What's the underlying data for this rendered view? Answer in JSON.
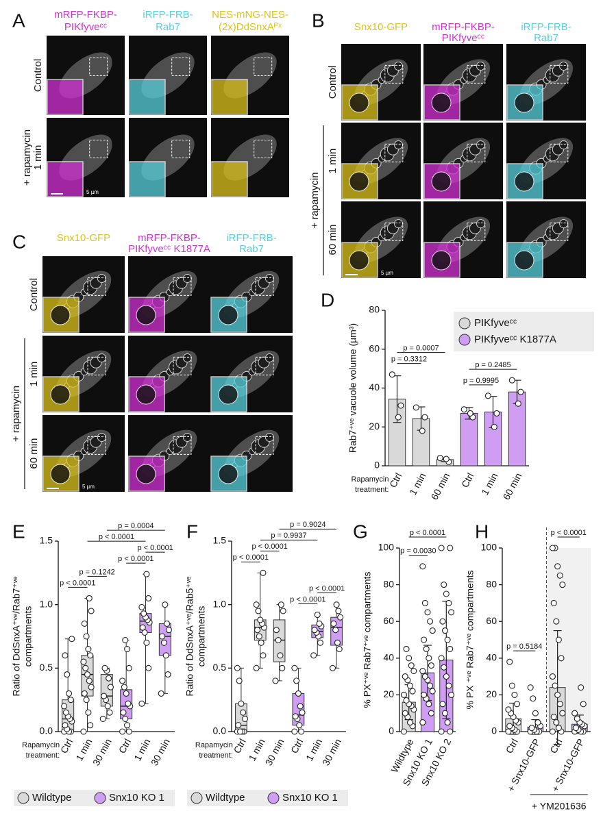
{
  "figure": {
    "A": {
      "label": "A",
      "headers": [
        {
          "lines": [
            "mRFP-FKBP-",
            "PIKfyveᶜᶜ"
          ],
          "color": "#d22fd2"
        },
        {
          "lines": [
            "iRFP-FRB-",
            "Rab7"
          ],
          "color": "#56d0dc"
        },
        {
          "lines": [
            "NES-mNG-NES-",
            "(2x)DdSnxAᴾˣ"
          ],
          "color": "#dcc21c"
        }
      ],
      "rows": [
        [
          "Control"
        ],
        [
          "+ rapamycin",
          "1 min"
        ]
      ],
      "scale_bar": "5 µm"
    },
    "B": {
      "label": "B",
      "headers": [
        {
          "lines": [
            "Snx10-GFP"
          ],
          "color": "#dcc21c"
        },
        {
          "lines": [
            "mRFP-FKBP-",
            "PIKfyveᶜᶜ"
          ],
          "color": "#d22fd2"
        },
        {
          "lines": [
            "iRFP-FRB-",
            "Rab7"
          ],
          "color": "#56d0dc"
        }
      ],
      "rows": [
        [
          "Control"
        ],
        [
          "1 min"
        ],
        [
          "60 min"
        ]
      ],
      "group": "+ rapamycin",
      "scale_bar": "5 µm"
    },
    "C": {
      "label": "C",
      "headers": [
        {
          "lines": [
            "Snx10-GFP"
          ],
          "color": "#dcc21c"
        },
        {
          "lines": [
            "mRFP-FKBP-",
            "PIKfyveᶜᶜ K1877A"
          ],
          "color": "#d22fd2"
        },
        {
          "lines": [
            "iRFP-FRB-",
            "Rab7"
          ],
          "color": "#56d0dc"
        }
      ],
      "rows": [
        [
          "Control"
        ],
        [
          "1 min"
        ],
        [
          "60 min"
        ]
      ],
      "group": "+ rapamycin",
      "scale_bar": "5 µm"
    }
  },
  "chart_data": [
    {
      "label": "D",
      "type": "bar",
      "categories": [
        "Ctrl",
        "1 min",
        "60 min",
        "Ctrl",
        "1 min",
        "60 min"
      ],
      "ylabel": "Rab7⁺ᵛᵉ vacuole volume (µm³)",
      "xlabel_lines": [
        "Rapamycin",
        "treatment:"
      ],
      "ylim": [
        0,
        80
      ],
      "yticks": [
        0,
        20,
        40,
        60,
        80
      ],
      "legend": "top-right",
      "series": [
        {
          "name": "PIKfyveᶜᶜ",
          "color": "#d9d9d9",
          "values": [
            34.3,
            24.3,
            3.2,
            null,
            null,
            null
          ],
          "errors": [
            12,
            6,
            1,
            null,
            null,
            null
          ],
          "points": [
            [
              47,
              31,
              25
            ],
            [
              30,
              25,
              18
            ],
            [
              4,
              2,
              3.5
            ],
            null,
            null,
            null
          ]
        },
        {
          "name": "PIKfyveᶜᶜ K1877A",
          "color": "#cf9ef2",
          "values": [
            null,
            null,
            null,
            27,
            27.7,
            38
          ],
          "errors": [
            null,
            null,
            null,
            3,
            8,
            6
          ],
          "points": [
            null,
            null,
            null,
            [
              29,
              25,
              27
            ],
            [
              36,
              27,
              20
            ],
            [
              44,
              38,
              32
            ]
          ]
        }
      ],
      "comparisons": [
        {
          "label": "p = 0.3312",
          "from": 0,
          "to": 1
        },
        {
          "label": "p = 0.0007",
          "from": 0,
          "to": 2
        },
        {
          "label": "p = 0.9995",
          "from": 3,
          "to": 4
        },
        {
          "label": "p = 0.2485",
          "from": 3,
          "to": 5
        }
      ]
    },
    {
      "label": "E",
      "type": "box",
      "categories": [
        "Ctrl",
        "1 min",
        "30 min",
        "Ctrl",
        "1 min",
        "30 min"
      ],
      "ylabel_lines": [
        "Ratio of DdSnxA⁺ᵛᵉ/Rab7⁺ᵛᵉ",
        "compartments"
      ],
      "xlabel_lines": [
        "Rapamycin",
        "treatment:"
      ],
      "ylim": [
        0,
        1.5
      ],
      "yticks": [
        {
          "value": 0,
          "label": "0.0"
        },
        0.5,
        {
          "value": 1,
          "label": "1.0"
        },
        1.5
      ],
      "legend": "bottom",
      "series": [
        {
          "name": "Wildtype",
          "color": "#d9d9d9",
          "boxes": [
            [
              0,
              0,
              0.1,
              0.25,
              0.73
            ],
            [
              0,
              0.28,
              0.45,
              0.6,
              1.05
            ],
            [
              0.1,
              0.2,
              0.28,
              0.45,
              0.5
            ],
            null,
            null,
            null
          ],
          "points": [
            [
              0,
              0,
              0,
              0.02,
              0.05,
              0.08,
              0.1,
              0.12,
              0.15,
              0.2,
              0.25,
              0.3,
              0.45,
              0.6,
              0.73
            ],
            [
              0,
              0.05,
              0.15,
              0.25,
              0.3,
              0.35,
              0.4,
              0.45,
              0.5,
              0.55,
              0.6,
              0.65,
              0.75,
              0.85,
              0.95,
              1.05
            ],
            [
              0.1,
              0.15,
              0.2,
              0.25,
              0.28,
              0.35,
              0.42,
              0.48,
              0.5
            ],
            null,
            null,
            null
          ]
        },
        {
          "name": "Snx10 KO 1",
          "color": "#cf9ef2",
          "boxes": [
            null,
            null,
            null,
            [
              0,
              0.1,
              0.2,
              0.33,
              0.72
            ],
            [
              0.22,
              0.78,
              0.87,
              0.93,
              1.24
            ],
            [
              0.3,
              0.6,
              0.75,
              0.85,
              1.0
            ]
          ],
          "points": [
            null,
            null,
            null,
            [
              0,
              0,
              0.05,
              0.1,
              0.15,
              0.2,
              0.22,
              0.3,
              0.35,
              0.4,
              0.5,
              0.65,
              0.72
            ],
            [
              0.22,
              0.5,
              0.7,
              0.78,
              0.82,
              0.86,
              0.88,
              0.9,
              0.93,
              0.98,
              1.05,
              1.24
            ],
            [
              0.3,
              0.45,
              0.6,
              0.7,
              0.75,
              0.8,
              0.85,
              1.0
            ]
          ]
        }
      ],
      "comparisons": [
        {
          "label": "p < 0.0001",
          "from": 0,
          "to": 1
        },
        {
          "label": "p = 0.1242",
          "from": 1,
          "to": 2
        },
        {
          "label": "p < 0.0001",
          "from": 3,
          "to": 4
        },
        {
          "label": "p < 0.0001",
          "from": 4,
          "to": 5
        },
        {
          "label": "p < 0.0001",
          "from": 1,
          "to": 4
        },
        {
          "label": "p = 0.0004",
          "from": 2,
          "to": 5
        }
      ]
    },
    {
      "label": "F",
      "type": "box",
      "categories": [
        "Ctrl",
        "1 min",
        "30 min",
        "Ctrl",
        "1 min",
        "30 min"
      ],
      "ylabel_lines": [
        "Ratio of DdSnxA⁺ᵛᵉ/Rab5⁺ᵛᵉ",
        "compartments"
      ],
      "xlabel_lines": [
        "Rapamycin",
        "treatment:"
      ],
      "ylim": [
        0,
        1.5
      ],
      "yticks": [
        {
          "value": 0,
          "label": "0.0"
        },
        0.5,
        {
          "value": 1,
          "label": "1.0"
        },
        1.5
      ],
      "legend": "bottom",
      "series": [
        {
          "name": "Wildtype",
          "color": "#d9d9d9",
          "boxes": [
            [
              0,
              0,
              0.05,
              0.22,
              0.5
            ],
            [
              0.5,
              0.72,
              0.82,
              0.88,
              1.25
            ],
            [
              0.4,
              0.55,
              0.72,
              0.88,
              1.0
            ],
            null,
            null,
            null
          ],
          "points": [
            [
              0,
              0,
              0,
              0,
              0.05,
              0.1,
              0.15,
              0.22,
              0.4,
              0.5
            ],
            [
              0.5,
              0.6,
              0.7,
              0.75,
              0.8,
              0.82,
              0.85,
              0.88,
              0.95,
              1.0,
              1.25
            ],
            [
              0.4,
              0.5,
              0.6,
              0.72,
              0.8,
              0.95,
              1.0
            ],
            null,
            null,
            null
          ]
        },
        {
          "name": "Snx10 KO 1",
          "color": "#cf9ef2",
          "boxes": [
            null,
            null,
            null,
            [
              0,
              0.05,
              0.13,
              0.3,
              0.5
            ],
            [
              0.6,
              0.74,
              0.79,
              0.84,
              0.92
            ],
            [
              0.5,
              0.68,
              0.82,
              0.9,
              1.0
            ]
          ],
          "points": [
            null,
            null,
            null,
            [
              0,
              0,
              0.05,
              0.1,
              0.12,
              0.15,
              0.2,
              0.3,
              0.4,
              0.5
            ],
            [
              0.6,
              0.7,
              0.75,
              0.78,
              0.8,
              0.83,
              0.85,
              0.92
            ],
            [
              0.5,
              0.65,
              0.7,
              0.8,
              0.85,
              0.9,
              0.95,
              1.0
            ]
          ]
        }
      ],
      "comparisons": [
        {
          "label": "p < 0.0001",
          "from": 0,
          "to": 1
        },
        {
          "label": "p < 0.0001",
          "from": 1,
          "to": 2
        },
        {
          "label": "p < 0.0001",
          "from": 3,
          "to": 4
        },
        {
          "label": "p < 0.0001",
          "from": 4,
          "to": 5
        },
        {
          "label": "p = 0.9937",
          "from": 1,
          "to": 4
        },
        {
          "label": "p = 0.9024",
          "from": 2,
          "to": 5
        }
      ]
    },
    {
      "label": "G",
      "type": "bar",
      "categories": [
        "Wildtype",
        "Snx10 KO 1",
        "Snx10 KO 2"
      ],
      "ylabel": "% PX⁺ᵛᵉ Rab7⁺ᵛᵉ compartments",
      "ylim": [
        0,
        100
      ],
      "yticks": [
        0,
        20,
        40,
        60,
        80,
        100
      ],
      "series": [
        {
          "color": "#d9d9d9",
          "values": [
            16,
            null,
            null
          ],
          "errors": [
            9.5,
            null,
            null
          ],
          "points": [
            [
              0,
              3,
              5,
              8,
              10,
              12,
              14,
              15,
              17,
              20,
              22,
              25,
              28,
              30,
              33,
              36,
              40,
              45
            ],
            null,
            null
          ]
        },
        {
          "color": "#cf9ef2",
          "values": [
            null,
            32,
            39
          ],
          "errors": [
            null,
            15,
            32
          ],
          "points": [
            null,
            [
              5,
              10,
              15,
              18,
              20,
              22,
              25,
              28,
              30,
              33,
              36,
              40,
              45,
              50,
              55,
              60,
              65,
              70,
              90
            ],
            [
              0,
              0,
              5,
              10,
              15,
              20,
              25,
              30,
              35,
              40,
              45,
              50,
              55,
              60,
              65,
              70,
              75,
              80,
              100,
              100
            ]
          ]
        }
      ],
      "comparisons": [
        {
          "label": "p = 0.0030",
          "from": 0,
          "to": 1
        },
        {
          "label": "p < 0.0001",
          "from": 0,
          "to": 2
        }
      ]
    },
    {
      "label": "H",
      "type": "bar",
      "categories": [
        "Ctrl",
        "+ Snx10-GFP",
        "Ctrl",
        "+ Snx10-GFP"
      ],
      "ylabel": "% PX ⁺ᵛᵉ Rab7⁺ᵛᵉ compartments",
      "ylim": [
        0,
        100
      ],
      "yticks": [
        0,
        20,
        40,
        60,
        80,
        100
      ],
      "shade_from": 2,
      "group_label": {
        "text": "+ YM201636",
        "from": 2,
        "to": 3
      },
      "series": [
        {
          "color": "#d9d9d9",
          "values": [
            7,
            null,
            24,
            null
          ],
          "errors": [
            8.5,
            null,
            31,
            null
          ],
          "points": [
            [
              0,
              0,
              1,
              2,
              3,
              5,
              6,
              8,
              10,
              12,
              15,
              20,
              25,
              38
            ],
            null,
            [
              0,
              0,
              2,
              5,
              8,
              10,
              15,
              20,
              25,
              30,
              40,
              50,
              60,
              70,
              80,
              85,
              90,
              100,
              100
            ],
            null
          ]
        },
        {
          "color": "#cf9ef2",
          "values": [
            null,
            2.5,
            null,
            4
          ],
          "errors": [
            null,
            4,
            null,
            5
          ],
          "points": [
            null,
            [
              0,
              0,
              0,
              1,
              2,
              3,
              5,
              10,
              18,
              24
            ],
            null,
            [
              0,
              0,
              0,
              1,
              2,
              3,
              4,
              5,
              7,
              10,
              15,
              24
            ]
          ]
        }
      ],
      "comparisons": [
        {
          "label": "p = 0.5184",
          "from": 0,
          "to": 1
        },
        {
          "label": "p < 0.0001",
          "from": 2,
          "to": 3
        }
      ]
    }
  ]
}
